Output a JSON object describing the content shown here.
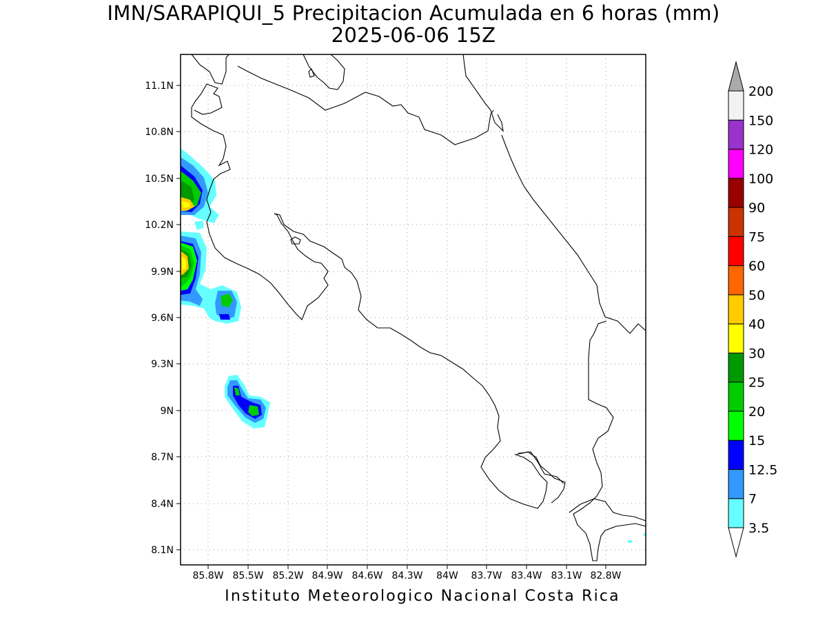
{
  "title_line1": "IMN/SARAPIQUI_5 Precipitacion Acumulada en 6 horas (mm)",
  "title_line2": "2025-06-06 15Z",
  "footer": "Instituto Meteorologico Nacional Costa Rica",
  "x_ticks": [
    "85.8W",
    "85.5W",
    "85.2W",
    "84.9W",
    "84.6W",
    "84.3W",
    "84W",
    "83.7W",
    "83.4W",
    "83.1W",
    "82.8W"
  ],
  "y_ticks": [
    "11.1N",
    "10.8N",
    "10.5N",
    "10.2N",
    "9.9N",
    "9.6N",
    "9.3N",
    "9N",
    "8.7N",
    "8.4N",
    "8.1N"
  ],
  "colorbar": {
    "colors": [
      "#66ffff",
      "#3399ff",
      "#0000ff",
      "#00ff00",
      "#00cc00",
      "#009900",
      "#ffff00",
      "#ffcc00",
      "#ff6600",
      "#ff0000",
      "#cc3300",
      "#990000",
      "#ff00ff",
      "#9933cc",
      "#f2f2f2",
      "#aaaaaa"
    ],
    "labels": [
      "3.5",
      "7",
      "12.5",
      "15",
      "20",
      "25",
      "30",
      "40",
      "50",
      "60",
      "75",
      "90",
      "100",
      "120",
      "150",
      "200"
    ]
  }
}
